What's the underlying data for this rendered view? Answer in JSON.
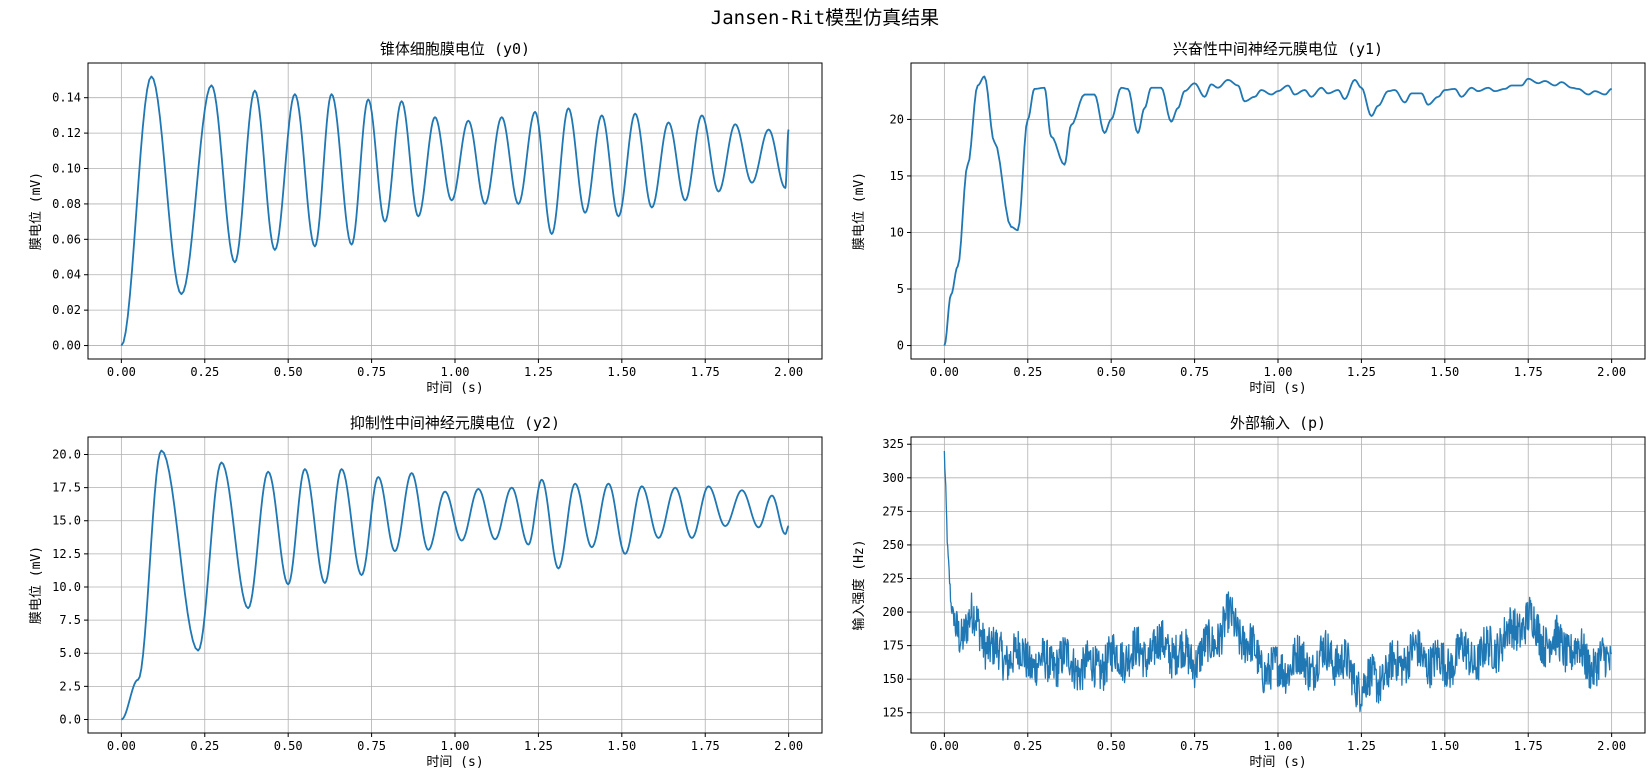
{
  "figure": {
    "title": "Jansen-Rit模型仿真结果"
  },
  "chart_data": [
    {
      "type": "line",
      "title": "锥体细胞膜电位 (y0)",
      "xlabel": "时间 (s)",
      "ylabel": "膜电位 (mV)",
      "xlim": [
        -0.1,
        2.1
      ],
      "ylim": [
        -0.0076,
        0.1596
      ],
      "xticks": [
        0,
        0.25,
        0.5,
        0.75,
        1.0,
        1.25,
        1.5,
        1.75,
        2.0
      ],
      "xtick_labels": [
        "0.00",
        "0.25",
        "0.50",
        "0.75",
        "1.00",
        "1.25",
        "1.50",
        "1.75",
        "2.00"
      ],
      "yticks": [
        0,
        0.02,
        0.04,
        0.06,
        0.08,
        0.1,
        0.12,
        0.14
      ],
      "ytick_labels": [
        "0.00",
        "0.02",
        "0.04",
        "0.06",
        "0.08",
        "0.10",
        "0.12",
        "0.14"
      ],
      "grid": true,
      "color": "#1f77b4",
      "kind": "extrema",
      "series": [
        {
          "x": [
            0,
            0.09,
            0.18,
            0.27,
            0.34,
            0.4,
            0.46,
            0.52,
            0.58,
            0.63,
            0.69,
            0.74,
            0.79,
            0.84,
            0.89,
            0.94,
            0.99,
            1.04,
            1.09,
            1.14,
            1.19,
            1.24,
            1.29,
            1.34,
            1.39,
            1.44,
            1.49,
            1.54,
            1.59,
            1.64,
            1.69,
            1.74,
            1.79,
            1.84,
            1.89,
            1.94,
            1.99,
            2.0
          ],
          "y": [
            0,
            0.152,
            0.029,
            0.147,
            0.047,
            0.144,
            0.054,
            0.142,
            0.056,
            0.142,
            0.057,
            0.139,
            0.07,
            0.138,
            0.073,
            0.129,
            0.082,
            0.127,
            0.08,
            0.129,
            0.08,
            0.132,
            0.063,
            0.134,
            0.075,
            0.13,
            0.073,
            0.131,
            0.078,
            0.126,
            0.082,
            0.13,
            0.087,
            0.125,
            0.092,
            0.122,
            0.089,
            0.122
          ]
        }
      ]
    },
    {
      "type": "line",
      "title": "兴奋性中间神经元膜电位 (y1)",
      "xlabel": "时间 (s)",
      "ylabel": "膜电位 (mV)",
      "xlim": [
        -0.1,
        2.1
      ],
      "ylim": [
        -1.19,
        24.99
      ],
      "xticks": [
        0,
        0.25,
        0.5,
        0.75,
        1.0,
        1.25,
        1.5,
        1.75,
        2.0
      ],
      "xtick_labels": [
        "0.00",
        "0.25",
        "0.50",
        "0.75",
        "1.00",
        "1.25",
        "1.50",
        "1.75",
        "2.00"
      ],
      "yticks": [
        0,
        5,
        10,
        15,
        20
      ],
      "ytick_labels": [
        "0",
        "5",
        "10",
        "15",
        "20"
      ],
      "grid": true,
      "color": "#1f77b4",
      "kind": "smooth",
      "series": [
        {
          "x": [
            0,
            0.02,
            0.04,
            0.07,
            0.1,
            0.12,
            0.15,
            0.2,
            0.22,
            0.25,
            0.27,
            0.3,
            0.32,
            0.36,
            0.38,
            0.42,
            0.45,
            0.48,
            0.5,
            0.53,
            0.55,
            0.58,
            0.6,
            0.62,
            0.65,
            0.68,
            0.7,
            0.72,
            0.75,
            0.78,
            0.8,
            0.82,
            0.85,
            0.88,
            0.9,
            0.93,
            0.95,
            0.98,
            1.0,
            1.03,
            1.05,
            1.08,
            1.1,
            1.13,
            1.15,
            1.18,
            1.2,
            1.23,
            1.25,
            1.28,
            1.3,
            1.33,
            1.35,
            1.38,
            1.4,
            1.43,
            1.45,
            1.48,
            1.5,
            1.53,
            1.55,
            1.58,
            1.6,
            1.63,
            1.65,
            1.68,
            1.7,
            1.73,
            1.75,
            1.78,
            1.8,
            1.83,
            1.85,
            1.88,
            1.9,
            1.93,
            1.95,
            1.98,
            2.0
          ],
          "y": [
            0,
            4.5,
            7,
            16,
            23,
            23.8,
            18,
            10.5,
            10.2,
            20,
            22.7,
            22.8,
            18.5,
            16,
            19.5,
            22.2,
            22.2,
            18.8,
            20,
            22.8,
            22.7,
            18.8,
            21,
            22.8,
            22.8,
            19.8,
            21,
            22.5,
            23.2,
            22,
            23.1,
            22.8,
            23.5,
            23,
            21.6,
            22,
            22.6,
            22.2,
            22.5,
            23,
            22.2,
            22.6,
            22,
            22.8,
            22.3,
            22.6,
            21.8,
            23.5,
            22.8,
            20.3,
            21.2,
            22.5,
            22.6,
            21.5,
            22.3,
            22.3,
            21.3,
            22,
            22.6,
            22.7,
            22,
            22.8,
            22.5,
            22.8,
            22.5,
            22.7,
            23,
            23,
            23.6,
            23.2,
            23.4,
            23,
            23.3,
            22.8,
            22.7,
            22.2,
            22.5,
            22.2,
            22.7
          ]
        }
      ]
    },
    {
      "type": "line",
      "title": "抑制性中间神经元膜电位 (y2)",
      "xlabel": "时间 (s)",
      "ylabel": "膜电位 (mV)",
      "xlim": [
        -0.1,
        2.1
      ],
      "ylim": [
        -1.02,
        21.32
      ],
      "xticks": [
        0,
        0.25,
        0.5,
        0.75,
        1.0,
        1.25,
        1.5,
        1.75,
        2.0
      ],
      "xtick_labels": [
        "0.00",
        "0.25",
        "0.50",
        "0.75",
        "1.00",
        "1.25",
        "1.50",
        "1.75",
        "2.00"
      ],
      "yticks": [
        0,
        2.5,
        5,
        7.5,
        10,
        12.5,
        15,
        17.5,
        20
      ],
      "ytick_labels": [
        "0.0",
        "2.5",
        "5.0",
        "7.5",
        "10.0",
        "12.5",
        "15.0",
        "17.5",
        "20.0"
      ],
      "grid": true,
      "color": "#1f77b4",
      "kind": "extrema",
      "series": [
        {
          "x": [
            0,
            0.05,
            0.12,
            0.23,
            0.3,
            0.38,
            0.44,
            0.5,
            0.55,
            0.61,
            0.66,
            0.72,
            0.77,
            0.82,
            0.87,
            0.92,
            0.97,
            1.02,
            1.07,
            1.12,
            1.17,
            1.22,
            1.26,
            1.31,
            1.36,
            1.41,
            1.46,
            1.51,
            1.56,
            1.61,
            1.66,
            1.71,
            1.76,
            1.81,
            1.86,
            1.91,
            1.95,
            1.99,
            2.0
          ],
          "y": [
            0,
            3,
            20.3,
            5.2,
            19.4,
            8.4,
            18.7,
            10.2,
            18.9,
            10.3,
            18.9,
            10.9,
            18.3,
            12.7,
            18.6,
            12.8,
            17.2,
            13.5,
            17.4,
            13.6,
            17.5,
            13.2,
            18.1,
            11.4,
            17.8,
            13,
            17.8,
            12.5,
            17.6,
            13.7,
            17.5,
            13.7,
            17.6,
            14.6,
            17.3,
            14.5,
            16.9,
            14,
            14.6
          ]
        }
      ]
    },
    {
      "type": "line",
      "title": "外部输入 (p)",
      "xlabel": "时间 (s)",
      "ylabel": "输入强度 (Hz)",
      "xlim": [
        -0.1,
        2.1
      ],
      "ylim": [
        109.9,
        330.4
      ],
      "xticks": [
        0,
        0.25,
        0.5,
        0.75,
        1.0,
        1.25,
        1.5,
        1.75,
        2.0
      ],
      "xtick_labels": [
        "0.00",
        "0.25",
        "0.50",
        "0.75",
        "1.00",
        "1.25",
        "1.50",
        "1.75",
        "2.00"
      ],
      "yticks": [
        125,
        150,
        175,
        200,
        225,
        250,
        275,
        300,
        325
      ],
      "ytick_labels": [
        "125",
        "150",
        "175",
        "200",
        "225",
        "250",
        "275",
        "300",
        "325"
      ],
      "grid": true,
      "color": "#1f77b4",
      "kind": "noisy",
      "series": [
        {
          "x": [
            0,
            0.01,
            0.02,
            0.03,
            0.05,
            0.08,
            0.1,
            0.12,
            0.15,
            0.18,
            0.2,
            0.25,
            0.3,
            0.35,
            0.4,
            0.45,
            0.5,
            0.55,
            0.6,
            0.65,
            0.7,
            0.75,
            0.8,
            0.85,
            0.9,
            0.95,
            1.0,
            1.05,
            1.1,
            1.15,
            1.2,
            1.25,
            1.3,
            1.35,
            1.4,
            1.45,
            1.5,
            1.55,
            1.6,
            1.65,
            1.7,
            1.75,
            1.78,
            1.8,
            1.85,
            1.9,
            1.95,
            2.0
          ],
          "y": [
            320,
            240,
            200,
            190,
            185,
            195,
            190,
            180,
            170,
            165,
            170,
            165,
            160,
            165,
            160,
            158,
            165,
            170,
            168,
            175,
            170,
            165,
            175,
            195,
            180,
            160,
            155,
            165,
            160,
            170,
            160,
            145,
            150,
            160,
            170,
            165,
            160,
            170,
            165,
            175,
            185,
            195,
            185,
            180,
            175,
            170,
            160,
            165
          ]
        }
      ]
    }
  ]
}
